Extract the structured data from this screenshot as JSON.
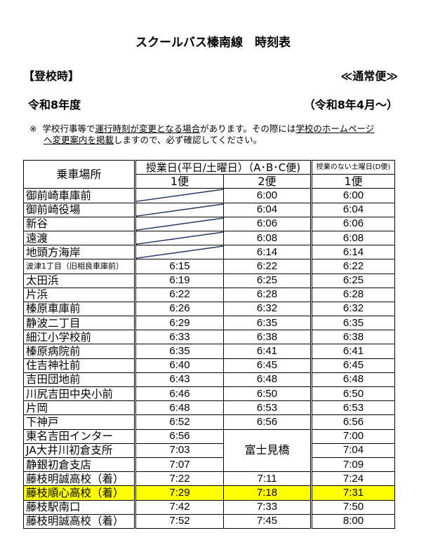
{
  "title": "スクールバス榛南線　時刻表",
  "left_label": "【登校時】",
  "right_label": "≪通常便≫",
  "year": "令和8年度",
  "since": "（令和8年4月～）",
  "note": {
    "mark": "※",
    "p1": "学校行事等で",
    "u1": "運行時刻が変更となる場合",
    "p2": "があります。その際には",
    "u2": "学校のホームページ",
    "u3": "へ変更案内を掲載",
    "p3": "しますので、必ず確認してください。"
  },
  "table": {
    "col_stop": "乗車場所",
    "group_ab": "授業日(平日/土曜日）（A･B･C便)",
    "group_d": "授業のない土曜日(D便)",
    "bin1": "1便",
    "bin2": "2便",
    "bin_d": "1便",
    "fujimibashi": "富士見橋",
    "highlight_color": "#ffff00",
    "rows": [
      {
        "stop": "御前崎車庫前",
        "t1": "",
        "t2": "6:00",
        "td": "6:00"
      },
      {
        "stop": "御前崎役場",
        "t1": "",
        "t2": "6:04",
        "td": "6:04"
      },
      {
        "stop": "新谷",
        "t1": "",
        "t2": "6:06",
        "td": "6:06"
      },
      {
        "stop": "遠渡",
        "t1": "",
        "t2": "6:08",
        "td": "6:08"
      },
      {
        "stop": "地頭方海岸",
        "t1": "",
        "t2": "6:14",
        "td": "6:14"
      },
      {
        "stop": "波津1丁目（旧相良車庫前）",
        "t1": "6:15",
        "t2": "6:22",
        "td": "6:22"
      },
      {
        "stop": "太田浜",
        "t1": "6:19",
        "t2": "6:25",
        "td": "6:25"
      },
      {
        "stop": "片浜",
        "t1": "6:22",
        "t2": "6:28",
        "td": "6:28"
      },
      {
        "stop": "榛原車庫前",
        "t1": "6:26",
        "t2": "6:32",
        "td": "6:32"
      },
      {
        "stop": "静波二丁目",
        "t1": "6:29",
        "t2": "6:35",
        "td": "6:35"
      },
      {
        "stop": "細江小学校前",
        "t1": "6:33",
        "t2": "6:38",
        "td": "6:38"
      },
      {
        "stop": "榛原病院前",
        "t1": "6:35",
        "t2": "6:41",
        "td": "6:41"
      },
      {
        "stop": "住吉神社前",
        "t1": "6:40",
        "t2": "6:45",
        "td": "6:45"
      },
      {
        "stop": "吉田団地前",
        "t1": "6:43",
        "t2": "6:48",
        "td": "6:48"
      },
      {
        "stop": "川尻吉田中央小前",
        "t1": "6:46",
        "t2": "6:50",
        "td": "6:50"
      },
      {
        "stop": "片岡",
        "t1": "6:48",
        "t2": "6:53",
        "td": "6:53"
      },
      {
        "stop": "下神戸",
        "t1": "6:52",
        "t2": "6:56",
        "td": "6:56"
      },
      {
        "stop": "東名吉田インター",
        "t1": "6:56",
        "t2": "",
        "td": "7:00"
      },
      {
        "stop": "JA大井川初倉支所",
        "t1": "7:03",
        "t2": "",
        "td": "7:04"
      },
      {
        "stop": "静銀初倉支店",
        "t1": "7:07",
        "t2": "",
        "td": "7:09"
      },
      {
        "stop": "藤枝明誠高校（着）",
        "t1": "7:22",
        "t2": "7:11",
        "td": "7:24"
      },
      {
        "stop": "藤枝順心高校（着）",
        "t1": "7:29",
        "t2": "7:18",
        "td": "7:31"
      },
      {
        "stop": "藤枝駅南口",
        "t1": "7:42",
        "t2": "7:33",
        "td": "7:50"
      },
      {
        "stop": "藤枝明誠高校（着）",
        "t1": "7:52",
        "t2": "7:45",
        "td": "8:00"
      }
    ]
  }
}
